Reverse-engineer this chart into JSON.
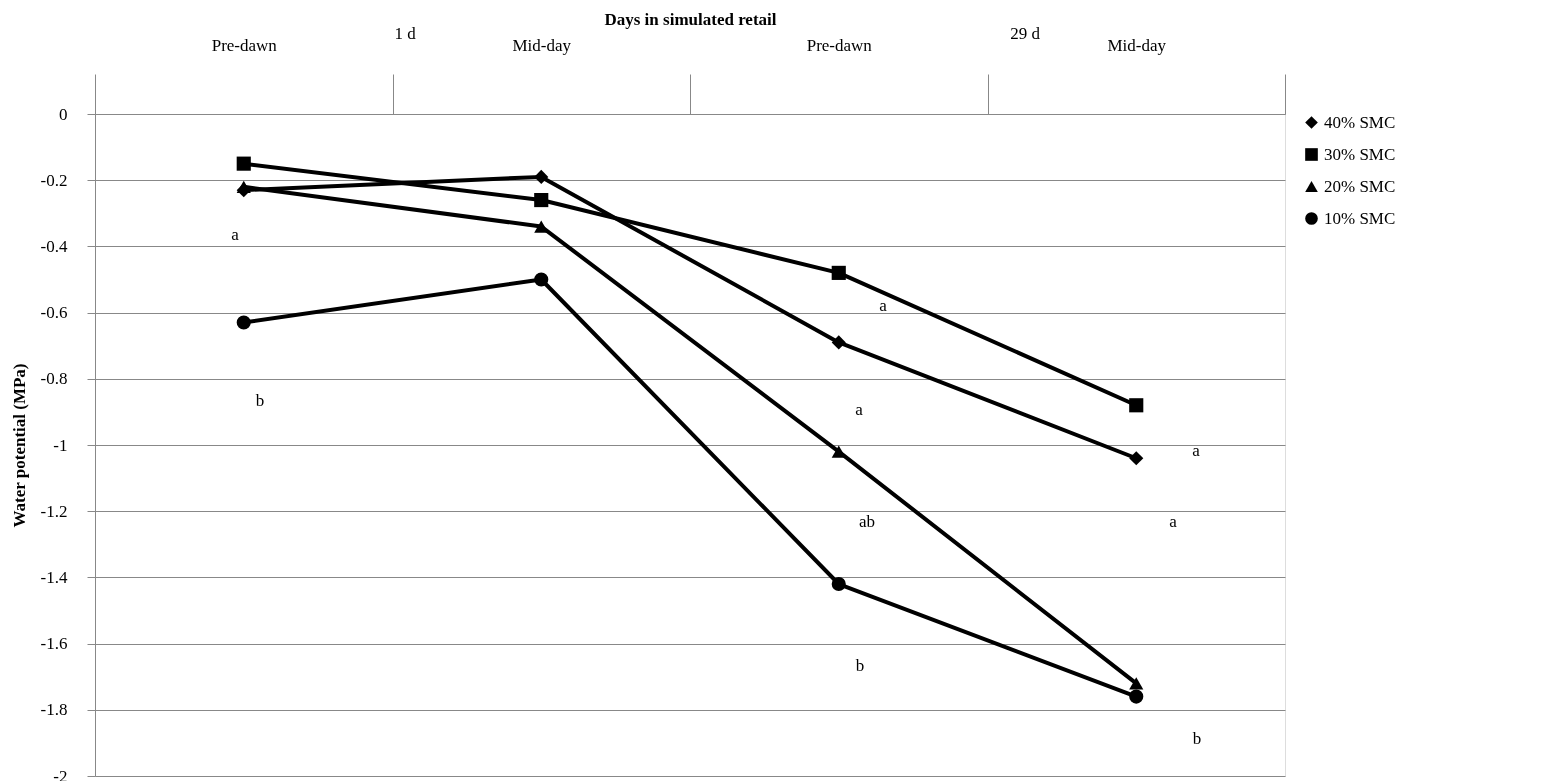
{
  "chart_data": {
    "type": "line",
    "xlabel": "Days in simulated retail",
    "ylabel": "Water potential (MPa)",
    "categories": [
      "Pre-dawn",
      "Mid-day",
      "Pre-dawn",
      "Mid-day"
    ],
    "series": [
      {
        "name": "40% SMC",
        "color": "#000000",
        "marker": "diamond",
        "values": [
          -0.23,
          -0.19,
          -0.69,
          -1.04
        ]
      },
      {
        "name": "30% SMC",
        "color": "#000000",
        "marker": "square",
        "values": [
          -0.15,
          -0.26,
          -0.48,
          -0.88
        ]
      },
      {
        "name": "20% SMC",
        "color": "#000000",
        "marker": "triangle",
        "values": [
          -0.22,
          -0.34,
          -1.02,
          -1.72
        ]
      },
      {
        "name": "10% SMC",
        "color": "#000000",
        "marker": "circle",
        "values": [
          -0.63,
          -0.5,
          -1.42,
          -1.76
        ]
      }
    ],
    "ylim": [
      -2,
      0
    ],
    "yticks": [
      -2,
      -1.8,
      -1.6,
      -1.4,
      -1.2,
      -1,
      -0.8,
      -0.6,
      -0.4,
      -0.2,
      0
    ],
    "grid": "y",
    "legend": "right",
    "line_style": "solid",
    "annotations": [
      "1 d",
      "29 d",
      "a",
      "b",
      "a",
      "a",
      "ab",
      "b",
      "a",
      "a",
      "b"
    ]
  }
}
